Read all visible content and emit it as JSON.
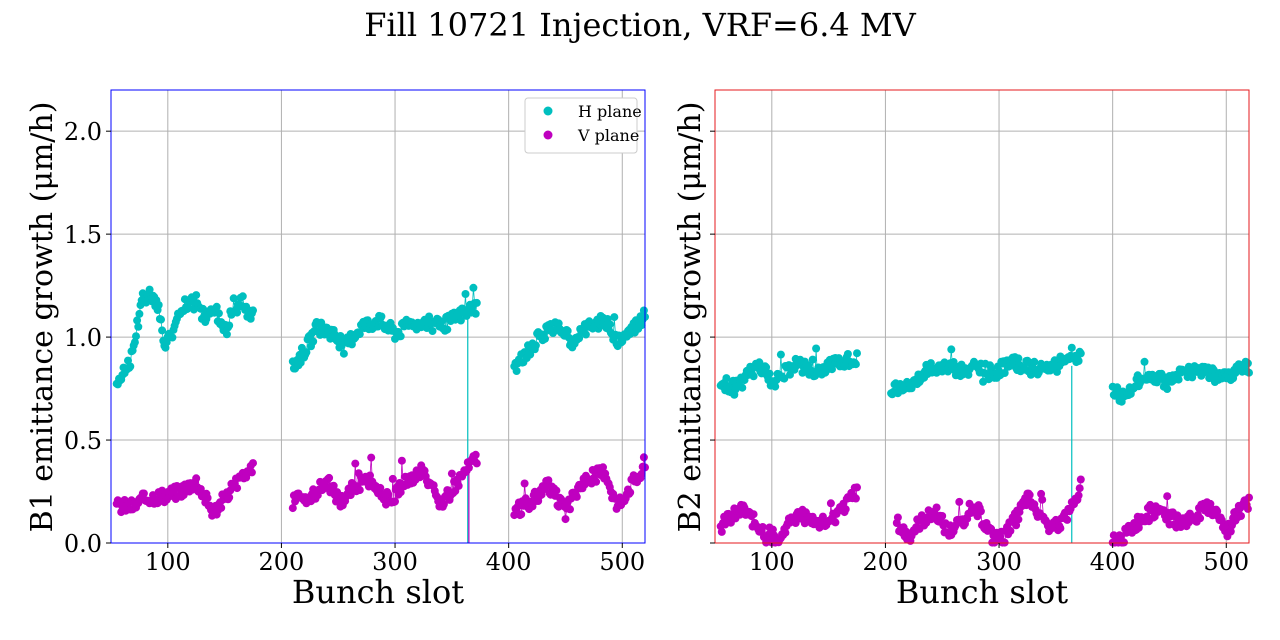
{
  "figure": {
    "title": "Fill 10721 Injection, VRF=6.4 MV"
  },
  "colors": {
    "h_plane": "#00bfbf",
    "v_plane": "#bf00bf",
    "grid": "#b0b0b0",
    "b1_frame": "#0000ff",
    "b2_frame": "#e41a1c"
  },
  "chart_data": [
    {
      "type": "scatter",
      "beam": "B1",
      "xlabel": "Bunch slot",
      "ylabel": "B1 emittance growth (μm/h)",
      "xlim": [
        50,
        520
      ],
      "ylim": [
        0.0,
        2.2
      ],
      "x_ticks": [
        100,
        200,
        300,
        400,
        500
      ],
      "y_ticks": [
        0.0,
        0.5,
        1.0,
        1.5,
        2.0
      ],
      "y_tick_labels": [
        "0.0",
        "0.5",
        "1.0",
        "1.5",
        "2.0"
      ],
      "grid": true,
      "legend_position": "top-right",
      "legend": [
        "H plane",
        "V plane"
      ],
      "series": [
        {
          "name": "H plane",
          "segments": [
            {
              "x_start": 55,
              "x_end": 175,
              "anchors": [
                [
                  55,
                  0.78
                ],
                [
                  68,
                  0.9
                ],
                [
                  78,
                  1.2
                ],
                [
                  85,
                  1.2
                ],
                [
                  92,
                  1.15
                ],
                [
                  96,
                  0.97
                ],
                [
                  104,
                  1.02
                ],
                [
                  115,
                  1.15
                ],
                [
                  125,
                  1.17
                ],
                [
                  133,
                  1.08
                ],
                [
                  140,
                  1.15
                ],
                [
                  150,
                  1.05
                ],
                [
                  165,
                  1.18
                ],
                [
                  175,
                  1.08
                ]
              ]
            },
            {
              "x_start": 210,
              "x_end": 372,
              "anchors": [
                [
                  210,
                  0.85
                ],
                [
                  222,
                  0.95
                ],
                [
                  232,
                  1.05
                ],
                [
                  245,
                  1.02
                ],
                [
                  255,
                  0.95
                ],
                [
                  270,
                  1.05
                ],
                [
                  285,
                  1.08
                ],
                [
                  300,
                  1.02
                ],
                [
                  312,
                  1.05
                ],
                [
                  325,
                  1.08
                ],
                [
                  340,
                  1.05
                ],
                [
                  355,
                  1.1
                ],
                [
                  372,
                  1.15
                ]
              ]
            },
            {
              "x_start": 405,
              "x_end": 520,
              "anchors": [
                [
                  405,
                  0.85
                ],
                [
                  420,
                  0.95
                ],
                [
                  430,
                  1.02
                ],
                [
                  445,
                  1.05
                ],
                [
                  455,
                  0.98
                ],
                [
                  470,
                  1.05
                ],
                [
                  485,
                  1.08
                ],
                [
                  495,
                  0.98
                ],
                [
                  505,
                  1.02
                ],
                [
                  520,
                  1.1
                ]
              ]
            }
          ]
        },
        {
          "name": "V plane",
          "segments": [
            {
              "x_start": 55,
              "x_end": 175,
              "anchors": [
                [
                  55,
                  0.18
                ],
                [
                  70,
                  0.18
                ],
                [
                  82,
                  0.22
                ],
                [
                  95,
                  0.23
                ],
                [
                  110,
                  0.25
                ],
                [
                  125,
                  0.3
                ],
                [
                  133,
                  0.22
                ],
                [
                  140,
                  0.15
                ],
                [
                  155,
                  0.25
                ],
                [
                  175,
                  0.37
                ]
              ]
            },
            {
              "x_start": 210,
              "x_end": 372,
              "anchors": [
                [
                  210,
                  0.2
                ],
                [
                  225,
                  0.22
                ],
                [
                  240,
                  0.3
                ],
                [
                  252,
                  0.2
                ],
                [
                  265,
                  0.28
                ],
                [
                  280,
                  0.3
                ],
                [
                  295,
                  0.2
                ],
                [
                  310,
                  0.3
                ],
                [
                  325,
                  0.35
                ],
                [
                  340,
                  0.18
                ],
                [
                  355,
                  0.3
                ],
                [
                  372,
                  0.42
                ]
              ]
            },
            {
              "x_start": 405,
              "x_end": 520,
              "anchors": [
                [
                  405,
                  0.15
                ],
                [
                  420,
                  0.2
                ],
                [
                  435,
                  0.28
                ],
                [
                  450,
                  0.15
                ],
                [
                  465,
                  0.3
                ],
                [
                  485,
                  0.35
                ],
                [
                  495,
                  0.18
                ],
                [
                  510,
                  0.3
                ],
                [
                  520,
                  0.35
                ]
              ]
            }
          ]
        }
      ],
      "spikes": [
        {
          "x": 364,
          "y_top": 1.1,
          "series": "H plane"
        },
        {
          "x": 365,
          "y_top": 0.35,
          "series": "V plane"
        }
      ]
    },
    {
      "type": "scatter",
      "beam": "B2",
      "xlabel": "Bunch slot",
      "ylabel": "B2 emittance growth (μm/h)",
      "xlim": [
        50,
        520
      ],
      "ylim": [
        0.0,
        2.2
      ],
      "x_ticks": [
        100,
        200,
        300,
        400,
        500
      ],
      "y_ticks": [
        0.0,
        0.5,
        1.0,
        1.5,
        2.0
      ],
      "y_tick_labels": [],
      "grid": true,
      "series": [
        {
          "name": "H plane",
          "segments": [
            {
              "x_start": 55,
              "x_end": 175,
              "anchors": [
                [
                  55,
                  0.78
                ],
                [
                  68,
                  0.75
                ],
                [
                  80,
                  0.82
                ],
                [
                  90,
                  0.86
                ],
                [
                  100,
                  0.78
                ],
                [
                  110,
                  0.82
                ],
                [
                  122,
                  0.88
                ],
                [
                  135,
                  0.82
                ],
                [
                  148,
                  0.85
                ],
                [
                  160,
                  0.88
                ],
                [
                  175,
                  0.9
                ]
              ]
            },
            {
              "x_start": 205,
              "x_end": 372,
              "anchors": [
                [
                  205,
                  0.74
                ],
                [
                  220,
                  0.76
                ],
                [
                  235,
                  0.84
                ],
                [
                  250,
                  0.86
                ],
                [
                  265,
                  0.84
                ],
                [
                  280,
                  0.86
                ],
                [
                  295,
                  0.82
                ],
                [
                  310,
                  0.88
                ],
                [
                  320,
                  0.86
                ],
                [
                  335,
                  0.84
                ],
                [
                  350,
                  0.86
                ],
                [
                  362,
                  0.92
                ],
                [
                  372,
                  0.9
                ]
              ]
            },
            {
              "x_start": 400,
              "x_end": 520,
              "anchors": [
                [
                  400,
                  0.76
                ],
                [
                  410,
                  0.7
                ],
                [
                  420,
                  0.78
                ],
                [
                  435,
                  0.8
                ],
                [
                  450,
                  0.78
                ],
                [
                  460,
                  0.82
                ],
                [
                  475,
                  0.84
                ],
                [
                  485,
                  0.82
                ],
                [
                  495,
                  0.8
                ],
                [
                  510,
                  0.84
                ],
                [
                  520,
                  0.86
                ]
              ]
            }
          ]
        },
        {
          "name": "V plane",
          "segments": [
            {
              "x_start": 55,
              "x_end": 175,
              "anchors": [
                [
                  55,
                  0.08
                ],
                [
                  65,
                  0.13
                ],
                [
                  75,
                  0.16
                ],
                [
                  85,
                  0.1
                ],
                [
                  95,
                  0.05
                ],
                [
                  105,
                  0.02
                ],
                [
                  115,
                  0.1
                ],
                [
                  125,
                  0.15
                ],
                [
                  135,
                  0.1
                ],
                [
                  145,
                  0.1
                ],
                [
                  155,
                  0.12
                ],
                [
                  165,
                  0.18
                ],
                [
                  175,
                  0.25
                ]
              ]
            },
            {
              "x_start": 210,
              "x_end": 372,
              "anchors": [
                [
                  210,
                  0.1
                ],
                [
                  220,
                  0.03
                ],
                [
                  230,
                  0.1
                ],
                [
                  245,
                  0.15
                ],
                [
                  255,
                  0.05
                ],
                [
                  270,
                  0.12
                ],
                [
                  282,
                  0.15
                ],
                [
                  295,
                  0.02
                ],
                [
                  305,
                  0.03
                ],
                [
                  315,
                  0.12
                ],
                [
                  325,
                  0.22
                ],
                [
                  340,
                  0.1
                ],
                [
                  350,
                  0.08
                ],
                [
                  365,
                  0.18
                ],
                [
                  372,
                  0.28
                ]
              ]
            },
            {
              "x_start": 400,
              "x_end": 520,
              "anchors": [
                [
                  400,
                  0.02
                ],
                [
                  410,
                  0.03
                ],
                [
                  425,
                  0.12
                ],
                [
                  440,
                  0.16
                ],
                [
                  450,
                  0.12
                ],
                [
                  460,
                  0.1
                ],
                [
                  472,
                  0.13
                ],
                [
                  485,
                  0.18
                ],
                [
                  492,
                  0.12
                ],
                [
                  500,
                  0.05
                ],
                [
                  510,
                  0.15
                ],
                [
                  520,
                  0.2
                ]
              ]
            }
          ]
        }
      ],
      "spikes": [
        {
          "x": 364,
          "y_top": 0.86,
          "series": "H plane"
        }
      ]
    }
  ]
}
